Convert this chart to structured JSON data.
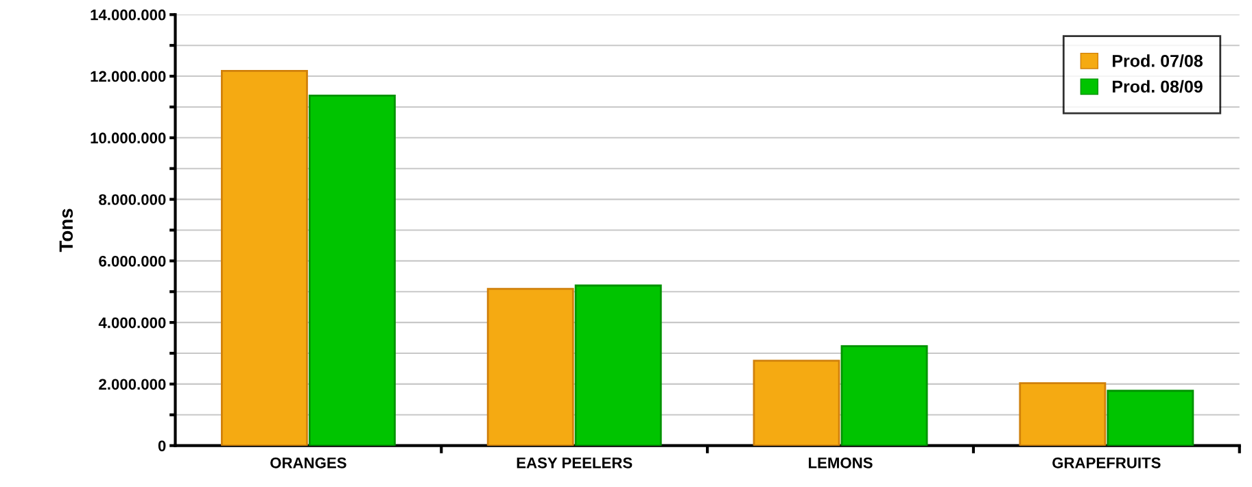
{
  "chart_data": {
    "type": "bar",
    "ylabel": "Tons",
    "categories": [
      "ORANGES",
      "EASY PEELERS",
      "LEMONS",
      "GRAPEFRUITS"
    ],
    "series": [
      {
        "name": "Prod. 07/08",
        "color": "#f5aa12",
        "values": [
          12170000,
          5090000,
          2760000,
          2030000
        ]
      },
      {
        "name": "Prod. 08/09",
        "color": "#00c400",
        "values": [
          11370000,
          5200000,
          3230000,
          1780000
        ]
      }
    ],
    "ylim": [
      0,
      14000000
    ],
    "yticks": [
      0,
      {
        "value": 1000000,
        "label": null
      },
      {
        "value": 2000000,
        "label": "2.000.000"
      },
      {
        "value": 3000000,
        "label": null
      },
      {
        "value": 4000000,
        "label": "4.000.000"
      },
      {
        "value": 5000000,
        "label": null
      },
      {
        "value": 6000000,
        "label": "6.000.000"
      },
      {
        "value": 7000000,
        "label": null
      },
      {
        "value": 8000000,
        "label": "8.000.000"
      },
      {
        "value": 9000000,
        "label": null
      },
      {
        "value": 10000000,
        "label": "10.000.000"
      },
      {
        "value": 11000000,
        "label": null
      },
      {
        "value": 12000000,
        "label": "12.000.000"
      },
      {
        "value": 13000000,
        "label": null
      },
      {
        "value": 14000000,
        "label": "14.000.000"
      }
    ],
    "grid": "y",
    "legend": "top right"
  }
}
